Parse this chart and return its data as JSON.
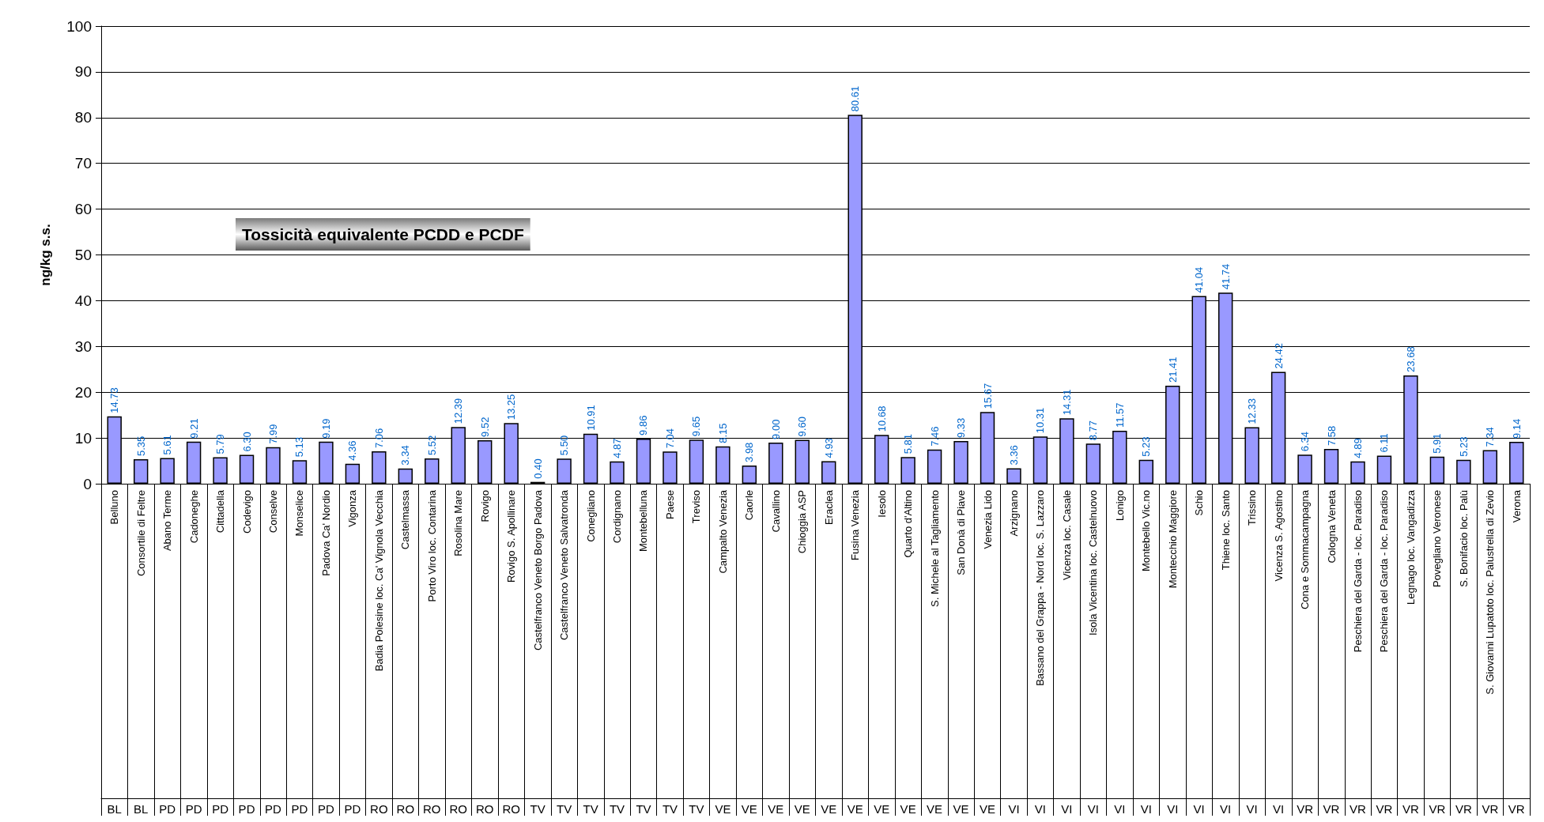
{
  "chart_data": {
    "type": "bar",
    "title": "Tossicità equivalente PCDD e PCDF",
    "ylabel": "ng/kg s.s.",
    "categories": [
      "Belluno",
      "Consortile di Feltre",
      "Abano Terme",
      "Cadoneghe",
      "Cittadella",
      "Codevigo",
      "Conselve",
      "Monselice",
      "Padova Ca' Nordio",
      "Vigonza",
      "Badia Polesine loc. Ca' Vignola Vecchia",
      "Castelmassa",
      "Porto Viro loc. Contarina",
      "Rosolina Mare",
      "Rovigo",
      "Rovigo S. Apollinare",
      "Castelfranco Veneto Borgo Padova",
      "Castelfranco Veneto Salvatronda",
      "Conegliano",
      "Cordignano",
      "Montebelluna",
      "Paese",
      "Treviso",
      "Campalto Venezia",
      "Caorle",
      "Cavallino",
      "Chioggia ASP",
      "Eraclea",
      "Fusina Venezia",
      "Iesolo",
      "Quarto d'Altino",
      "S. Michele al Tagliamento",
      "San Donà di Piave",
      "Venezia Lido",
      "Arzignano",
      "Bassano del Grappa - Nord loc. S. Lazzaro",
      "Vicenza loc. Casale",
      "Isola Vicentina loc. Castelnuovo",
      "Lonigo",
      "Montebello Vic.no",
      "Montecchio Maggiore",
      "Schio",
      "Thiene loc. Santo",
      "Trissino",
      "Vicenza S. Agostino",
      "Cona e Sommacampagna",
      "Cologna Veneta",
      "Peschiera del Garda - loc. Paradiso",
      "Peschiera del Garda - loc. Paradiso",
      "Legnago loc. Vangadizza",
      "Povegliano Veronese",
      "S. Bonifacio loc. Palù",
      "S. Giovanni Lupatoto loc. Palustrella di Zevio",
      "Verona"
    ],
    "values": [
      14.73,
      5.35,
      5.61,
      9.21,
      5.79,
      6.3,
      7.99,
      5.13,
      9.19,
      4.36,
      7.06,
      3.34,
      5.52,
      12.39,
      9.52,
      13.25,
      0.4,
      5.5,
      10.91,
      4.87,
      9.86,
      7.04,
      9.65,
      8.15,
      3.98,
      9.0,
      9.6,
      4.93,
      80.61,
      10.68,
      5.81,
      7.46,
      9.33,
      15.67,
      3.36,
      10.31,
      14.31,
      8.77,
      11.57,
      5.23,
      21.41,
      41.04,
      41.74,
      12.33,
      24.42,
      6.34,
      7.58,
      4.89,
      6.11,
      23.68,
      5.91,
      5.23,
      7.34,
      9.14
    ],
    "value_labels": [
      "14.73",
      "5.35",
      "5.61",
      "9.21",
      "5.79",
      "6.30",
      "7.99",
      "5.13",
      "9.19",
      "4.36",
      "7.06",
      "3.34",
      "5.52",
      "12.39",
      "9.52",
      "13.25",
      "0.40",
      "5.50",
      "10.91",
      "4.87",
      "9.86",
      "7.04",
      "9.65",
      "8.15",
      "3.98",
      "9.00",
      "9.60",
      "4.93",
      "80.61",
      "10.68",
      "5.81",
      "7.46",
      "9.33",
      "15.67",
      "3.36",
      "10.31",
      "14.31",
      "8.77",
      "11.57",
      "5.23",
      "21.41",
      "41.04",
      "41.74",
      "12.33",
      "24.42",
      "6.34",
      "7.58",
      "4.89",
      "6.11",
      "23.68",
      "5.91",
      "5.23",
      "7.34",
      "9.14"
    ],
    "color": "#9999ff",
    "ylim": [
      0,
      100
    ],
    "yticks": [
      0,
      10,
      20,
      30,
      40,
      50,
      60,
      70,
      80,
      90,
      100
    ],
    "grid": "y",
    "annotations": [
      "BL",
      "BL",
      "PD",
      "PD",
      "PD",
      "PD",
      "PD",
      "PD",
      "PD",
      "PD",
      "RO",
      "RO",
      "RO",
      "RO",
      "RO",
      "RO",
      "TV",
      "TV",
      "TV",
      "TV",
      "TV",
      "TV",
      "TV",
      "VE",
      "VE",
      "VE",
      "VE",
      "VE",
      "VE",
      "VE",
      "VE",
      "VE",
      "VE",
      "VE",
      "VI",
      "VI",
      "VI",
      "VI",
      "VI",
      "VI",
      "VI",
      "VI",
      "VI",
      "VI",
      "VI",
      "VR",
      "VR",
      "VR",
      "VR",
      "VR",
      "VR",
      "VR",
      "VR",
      "VR"
    ]
  }
}
